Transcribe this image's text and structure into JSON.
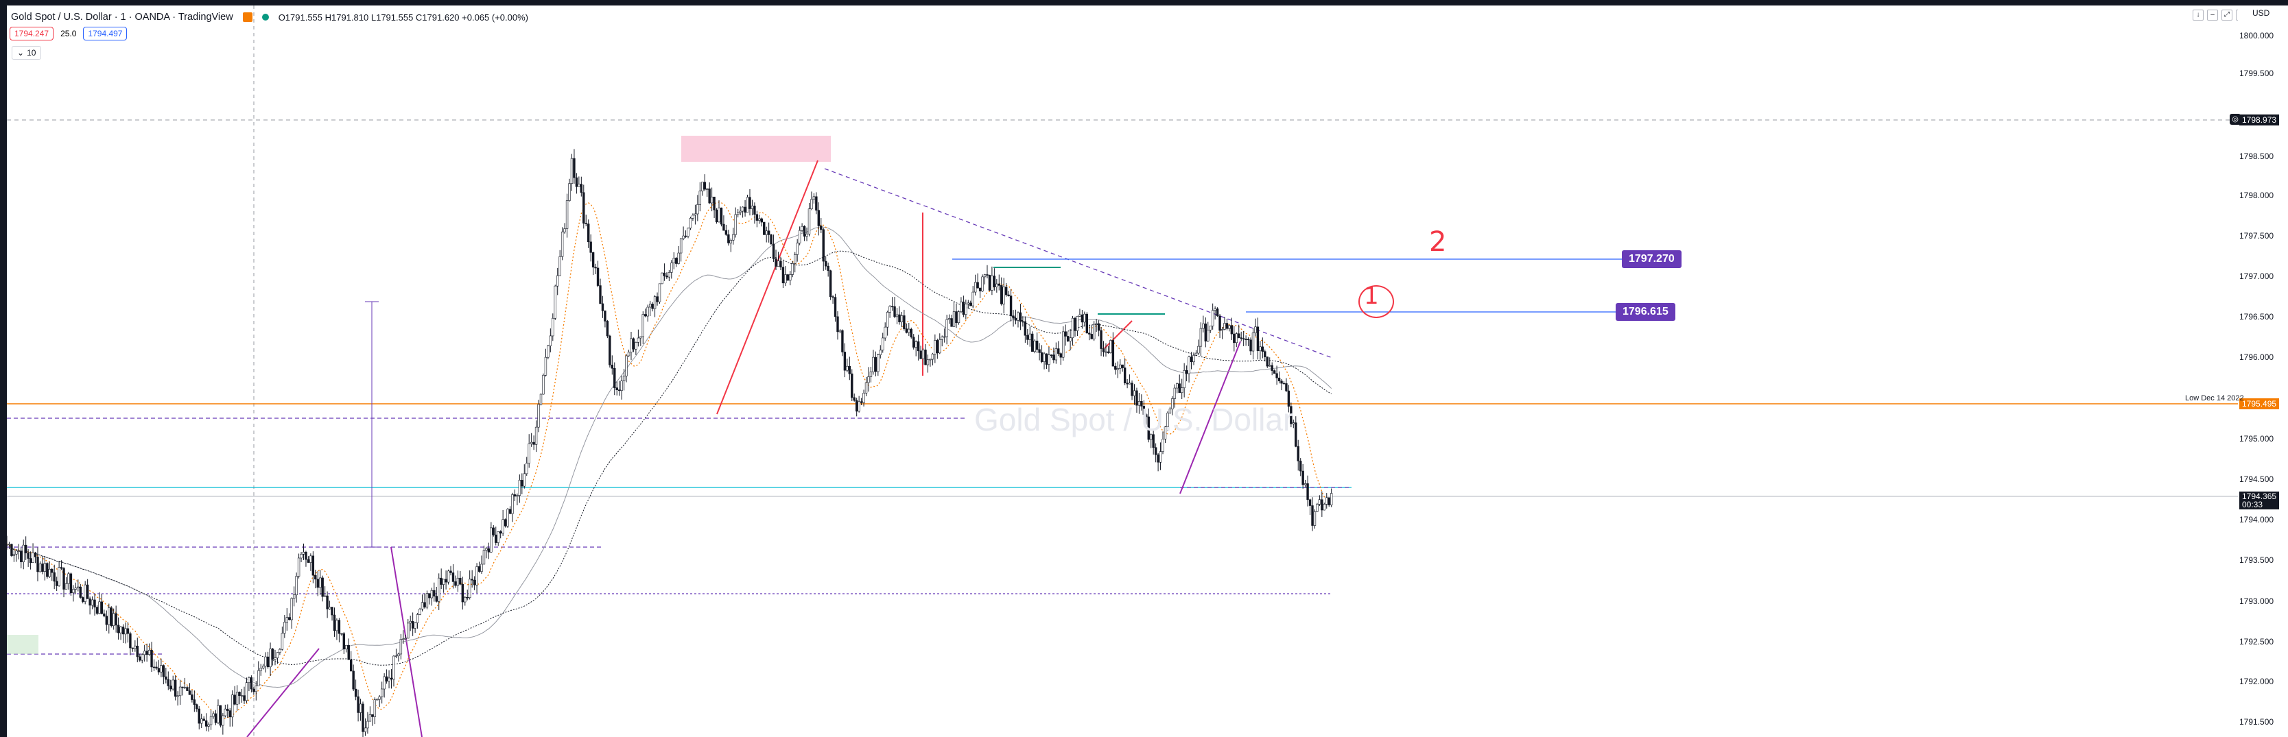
{
  "header": {
    "symbol_title": "Gold Spot / U.S. Dollar · 1 · OANDA · TradingView",
    "ohlc": "O1791.555  H1791.810  L1791.555  C1791.620  +0.065 (+0.00%)",
    "bid": "1794.247",
    "spread": "25.0",
    "ask": "1794.497",
    "interval_button": "10",
    "currency": "USD"
  },
  "icons": {
    "legend_flag": "orange-square-icon",
    "market_status": "green-dot-icon",
    "interval_chevron": "chevron-down-icon",
    "top_right": [
      "arrow-down-icon",
      "minus-box-icon",
      "expand-icon",
      "refresh-icon"
    ],
    "target": "crosshair-target-icon"
  },
  "colors": {
    "bull": "#089981",
    "bear": "#131722",
    "accent_orange": "#f57c00",
    "drawing_purple": "#673ab7",
    "drawing_red": "#f23645",
    "horizontal_blue": "#2962ff"
  },
  "price_axis": {
    "ticks": [
      "1800.000",
      "1799.500",
      "1798.500",
      "1798.000",
      "1797.500",
      "1797.000",
      "1796.500",
      "1796.000",
      "1795.000",
      "1794.500",
      "1794.000",
      "1793.500",
      "1793.000",
      "1792.500",
      "1792.000",
      "1791.500"
    ],
    "alert_price": "1798.973",
    "low_price": "1795.495",
    "low_label": "Low Dec 14 2022",
    "current_price": "1794.365",
    "countdown": "00:33"
  },
  "drawings": {
    "level_2_price": "1797.270",
    "level_1_price": "1796.615",
    "mark_1": "1",
    "mark_2": "2"
  },
  "watermark": "Gold Spot / U.S. Dollar",
  "chart_data": {
    "type": "candlestick",
    "symbol": "XAUUSD",
    "timeframe": "1",
    "ylim": [
      1791.4,
      1800.3
    ],
    "grid": false,
    "horizontal_levels": [
      1798.973,
      1797.27,
      1796.615,
      1795.495,
      1794.365
    ],
    "waypoints": [
      [
        0,
        1793.75
      ],
      [
        12,
        1793.55
      ],
      [
        24,
        1793.3
      ],
      [
        36,
        1793.05
      ],
      [
        48,
        1792.7
      ],
      [
        62,
        1792.25
      ],
      [
        75,
        1791.85
      ],
      [
        85,
        1791.55
      ],
      [
        95,
        1791.75
      ],
      [
        108,
        1792.2
      ],
      [
        118,
        1792.75
      ],
      [
        124,
        1793.75
      ],
      [
        132,
        1793.3
      ],
      [
        142,
        1792.5
      ],
      [
        150,
        1791.55
      ],
      [
        160,
        1792.05
      ],
      [
        168,
        1792.6
      ],
      [
        178,
        1793.05
      ],
      [
        186,
        1793.35
      ],
      [
        194,
        1793.1
      ],
      [
        202,
        1793.75
      ],
      [
        210,
        1794.05
      ],
      [
        216,
        1794.45
      ],
      [
        222,
        1795.1
      ],
      [
        228,
        1796.25
      ],
      [
        234,
        1797.5
      ],
      [
        238,
        1798.55
      ],
      [
        242,
        1798.0
      ],
      [
        250,
        1796.8
      ],
      [
        256,
        1795.6
      ],
      [
        262,
        1796.1
      ],
      [
        270,
        1796.6
      ],
      [
        278,
        1797.1
      ],
      [
        286,
        1797.55
      ],
      [
        292,
        1798.15
      ],
      [
        298,
        1797.9
      ],
      [
        305,
        1797.55
      ],
      [
        312,
        1798.05
      ],
      [
        320,
        1797.6
      ],
      [
        328,
        1797.05
      ],
      [
        334,
        1797.5
      ],
      [
        340,
        1797.95
      ],
      [
        346,
        1797.1
      ],
      [
        352,
        1796.1
      ],
      [
        358,
        1795.5
      ],
      [
        366,
        1796.0
      ],
      [
        372,
        1796.8
      ],
      [
        380,
        1796.3
      ],
      [
        388,
        1796.0
      ],
      [
        396,
        1796.45
      ],
      [
        404,
        1796.75
      ],
      [
        412,
        1797.1
      ],
      [
        420,
        1796.8
      ],
      [
        428,
        1796.4
      ],
      [
        436,
        1796.05
      ],
      [
        444,
        1796.2
      ],
      [
        452,
        1796.55
      ],
      [
        460,
        1796.35
      ],
      [
        468,
        1796.0
      ],
      [
        476,
        1795.6
      ],
      [
        484,
        1794.8
      ],
      [
        490,
        1795.4
      ],
      [
        496,
        1795.85
      ],
      [
        502,
        1796.25
      ],
      [
        508,
        1796.55
      ],
      [
        514,
        1796.4
      ],
      [
        520,
        1796.2
      ],
      [
        526,
        1796.3
      ],
      [
        532,
        1796.0
      ],
      [
        538,
        1795.8
      ],
      [
        542,
        1795.2
      ],
      [
        546,
        1794.6
      ],
      [
        550,
        1794.1
      ],
      [
        554,
        1794.2
      ],
      [
        558,
        1794.38
      ]
    ]
  }
}
